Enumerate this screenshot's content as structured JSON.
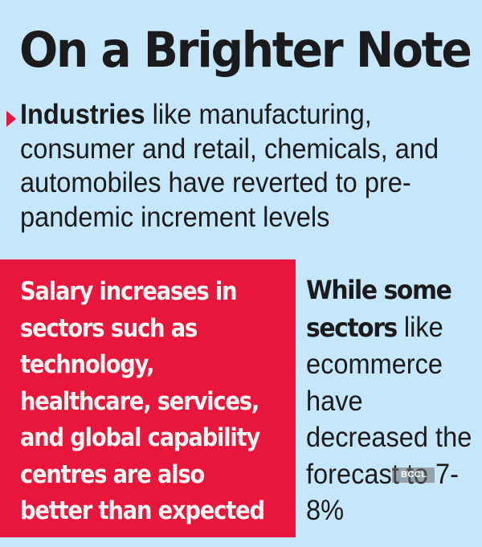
{
  "title": "On a Brighter Note",
  "intro": {
    "bold": "Industries",
    "text": " like manufacturing, consumer and retail, chemicals, and automobiles have reverted to pre-pandemic increment levels"
  },
  "red_box": {
    "text": "Salary increases in sectors such as technology, healthcare, services, and global capability centres are also better than expected"
  },
  "side": {
    "bold": "While some sectors",
    "text": " like ecommerce have decreased the forecast to 7-8%"
  },
  "watermark": "BCCL",
  "colors": {
    "background": "#c6e7f9",
    "accent_red": "#e8163c",
    "text_dark": "#1b1a1c",
    "text_light": "#fff5f0"
  }
}
